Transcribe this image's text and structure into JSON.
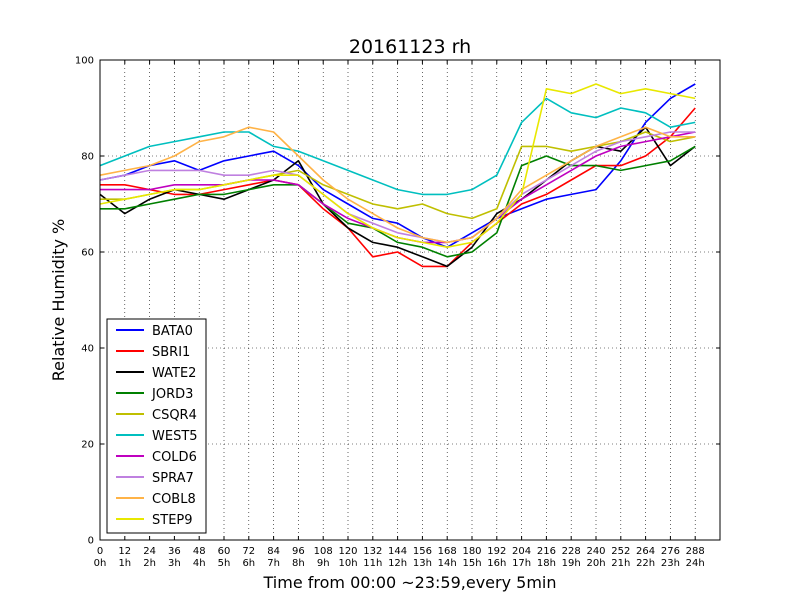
{
  "chart_data": {
    "type": "line",
    "title": "20161123 rh",
    "xlabel": "Time from 00:00 ~23:59,every 5min",
    "ylabel": "Relative Humidity %",
    "xlim": [
      0,
      300
    ],
    "ylim": [
      0,
      100
    ],
    "grid": true,
    "legend_position": "lower-left",
    "x_ticks": [
      0,
      12,
      24,
      36,
      48,
      60,
      72,
      84,
      96,
      108,
      120,
      132,
      144,
      156,
      168,
      180,
      192,
      204,
      216,
      228,
      240,
      252,
      264,
      276,
      288
    ],
    "x_tick_hours": [
      "0h",
      "1h",
      "2h",
      "3h",
      "4h",
      "5h",
      "6h",
      "7h",
      "8h",
      "9h",
      "10h",
      "11h",
      "12h",
      "13h",
      "14h",
      "15h",
      "16h",
      "17h",
      "18h",
      "19h",
      "20h",
      "21h",
      "22h",
      "23h",
      "24h"
    ],
    "y_ticks": [
      0,
      20,
      40,
      60,
      80,
      100
    ],
    "series": [
      {
        "name": "BATA0",
        "color": "#0000ff",
        "x": [
          0,
          12,
          24,
          36,
          48,
          60,
          72,
          84,
          96,
          108,
          120,
          132,
          144,
          156,
          168,
          180,
          192,
          204,
          216,
          228,
          240,
          252,
          264,
          276,
          288
        ],
        "values": [
          75,
          76,
          78,
          79,
          77,
          79,
          80,
          81,
          78,
          73,
          70,
          67,
          66,
          63,
          61,
          64,
          67,
          69,
          71,
          72,
          73,
          79,
          87,
          92,
          95
        ]
      },
      {
        "name": "SBRI1",
        "color": "#ff0000",
        "x": [
          0,
          12,
          24,
          36,
          48,
          60,
          72,
          84,
          96,
          108,
          120,
          132,
          144,
          156,
          168,
          180,
          192,
          204,
          216,
          228,
          240,
          252,
          264,
          276,
          288
        ],
        "values": [
          74,
          74,
          73,
          72,
          72,
          73,
          74,
          75,
          74,
          69,
          65,
          59,
          60,
          57,
          57,
          62,
          66,
          70,
          72,
          75,
          78,
          78,
          80,
          84,
          90
        ]
      },
      {
        "name": "WATE2",
        "color": "#000000",
        "x": [
          0,
          12,
          24,
          36,
          48,
          60,
          72,
          84,
          96,
          108,
          120,
          132,
          144,
          156,
          168,
          180,
          192,
          204,
          216,
          228,
          240,
          252,
          264,
          276,
          288
        ],
        "values": [
          72,
          68,
          71,
          73,
          72,
          71,
          73,
          75,
          79,
          70,
          65,
          62,
          61,
          59,
          57,
          61,
          68,
          71,
          75,
          79,
          82,
          81,
          86,
          78,
          82
        ]
      },
      {
        "name": "JORD3",
        "color": "#008000",
        "x": [
          0,
          12,
          24,
          36,
          48,
          60,
          72,
          84,
          96,
          108,
          120,
          132,
          144,
          156,
          168,
          180,
          192,
          204,
          216,
          228,
          240,
          252,
          264,
          276,
          288
        ],
        "values": [
          69,
          69,
          70,
          71,
          72,
          72,
          73,
          74,
          74,
          70,
          66,
          65,
          62,
          61,
          59,
          60,
          64,
          78,
          80,
          78,
          78,
          77,
          78,
          79,
          82
        ]
      },
      {
        "name": "CSQR4",
        "color": "#bfbf00",
        "x": [
          0,
          12,
          24,
          36,
          48,
          60,
          72,
          84,
          96,
          108,
          120,
          132,
          144,
          156,
          168,
          180,
          192,
          204,
          216,
          228,
          240,
          252,
          264,
          276,
          288
        ],
        "values": [
          71,
          71,
          72,
          73,
          73,
          74,
          75,
          76,
          77,
          74,
          72,
          70,
          69,
          70,
          68,
          67,
          69,
          82,
          82,
          81,
          82,
          83,
          85,
          83,
          84
        ]
      },
      {
        "name": "WEST5",
        "color": "#00bfbf",
        "x": [
          0,
          12,
          24,
          36,
          48,
          60,
          72,
          84,
          96,
          108,
          120,
          132,
          144,
          156,
          168,
          180,
          192,
          204,
          216,
          228,
          240,
          252,
          264,
          276,
          288
        ],
        "values": [
          78,
          80,
          82,
          83,
          84,
          85,
          85,
          82,
          81,
          79,
          77,
          75,
          73,
          72,
          72,
          73,
          76,
          87,
          92,
          89,
          88,
          90,
          89,
          86,
          87
        ]
      },
      {
        "name": "COLD6",
        "color": "#bf00bf",
        "x": [
          0,
          12,
          24,
          36,
          48,
          60,
          72,
          84,
          96,
          108,
          120,
          132,
          144,
          156,
          168,
          180,
          192,
          204,
          216,
          228,
          240,
          252,
          264,
          276,
          288
        ],
        "values": [
          73,
          73,
          73,
          74,
          74,
          74,
          75,
          75,
          74,
          70,
          67,
          65,
          63,
          62,
          62,
          63,
          67,
          71,
          74,
          77,
          80,
          82,
          83,
          84,
          85
        ]
      },
      {
        "name": "SPRA7",
        "color": "#bf80e0",
        "x": [
          0,
          12,
          24,
          36,
          48,
          60,
          72,
          84,
          96,
          108,
          120,
          132,
          144,
          156,
          168,
          180,
          192,
          204,
          216,
          228,
          240,
          252,
          264,
          276,
          288
        ],
        "values": [
          75,
          76,
          77,
          77,
          77,
          76,
          76,
          77,
          76,
          72,
          68,
          66,
          64,
          63,
          62,
          63,
          67,
          72,
          75,
          78,
          81,
          83,
          84,
          85,
          85
        ]
      },
      {
        "name": "COBL8",
        "color": "#ffb347",
        "x": [
          0,
          12,
          24,
          36,
          48,
          60,
          72,
          84,
          96,
          108,
          120,
          132,
          144,
          156,
          168,
          180,
          192,
          204,
          216,
          228,
          240,
          252,
          264,
          276,
          288
        ],
        "values": [
          76,
          77,
          78,
          80,
          83,
          84,
          86,
          85,
          80,
          75,
          71,
          68,
          65,
          63,
          62,
          63,
          67,
          73,
          76,
          79,
          82,
          84,
          86,
          84,
          84
        ]
      },
      {
        "name": "STEP9",
        "color": "#e8e800",
        "x": [
          0,
          12,
          24,
          36,
          48,
          60,
          72,
          84,
          96,
          108,
          120,
          132,
          144,
          156,
          168,
          180,
          192,
          204,
          216,
          228,
          240,
          252,
          264,
          276,
          288
        ],
        "values": [
          70,
          71,
          72,
          73,
          73,
          74,
          75,
          76,
          76,
          72,
          68,
          65,
          63,
          62,
          61,
          62,
          66,
          72,
          94,
          93,
          95,
          93,
          94,
          93,
          92
        ]
      }
    ]
  }
}
